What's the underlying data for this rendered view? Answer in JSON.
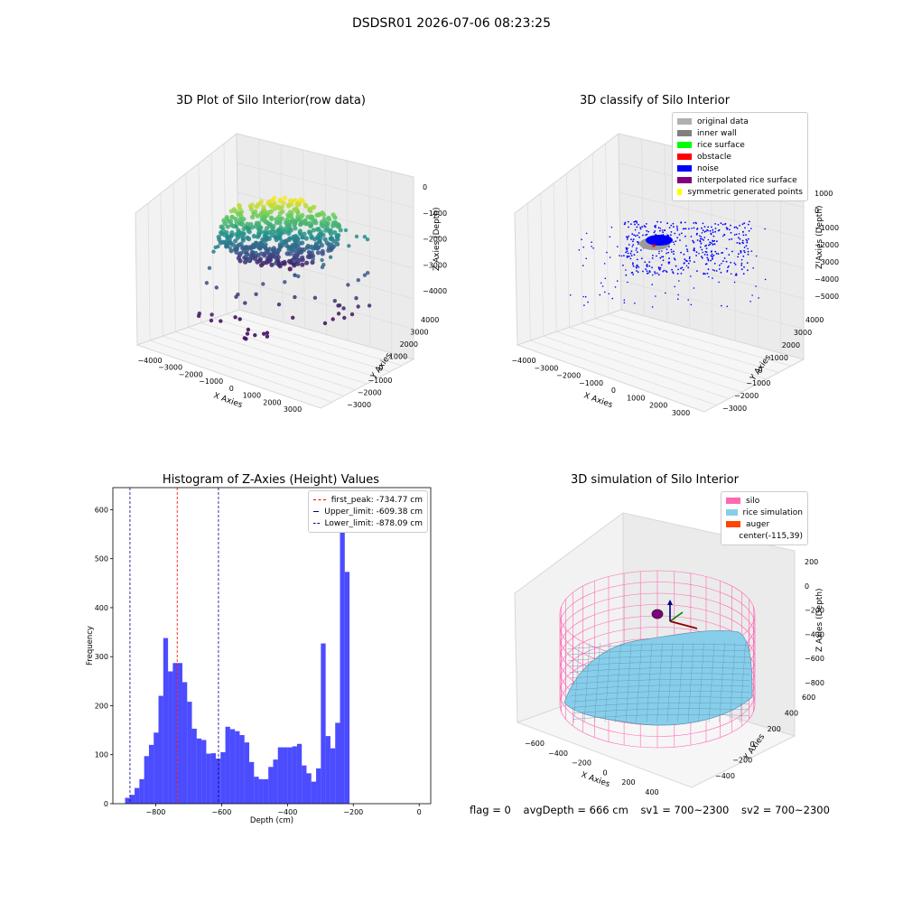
{
  "suptitle": "DSDSR01 2026-07-06 08:23:25",
  "footer": {
    "flag": "flag = 0",
    "avg": "avgDepth = 666 cm",
    "sv1": "sv1 = 700~2300",
    "sv2": "sv2 = 700~2300"
  },
  "chart_data": [
    {
      "type": "scatter",
      "title": "3D Plot of Silo Interior(row data)",
      "xlabel": "X Axies",
      "ylabel": "Y Axies",
      "zlabel": "Z Axies (Depth)",
      "x_ticks": [
        "−4000",
        "−3000",
        "−2000",
        "−1000",
        "0",
        "1000",
        "2000",
        "3000"
      ],
      "y_ticks": [
        "−3000",
        "−2000",
        "−1000",
        "0",
        "1000",
        "2000",
        "3000",
        "4000"
      ],
      "z_ticks": [
        "−4000",
        "−3000",
        "−2000",
        "−1000",
        "0"
      ],
      "colormap": "viridis"
    },
    {
      "type": "scatter",
      "title": "3D classify of Silo Interior",
      "xlabel": "X Axies",
      "ylabel": "Y Axies",
      "zlabel": "Z Axies (Depth)",
      "x_ticks": [
        "−4000",
        "−3000",
        "−2000",
        "−1000",
        "0",
        "1000",
        "2000",
        "3000"
      ],
      "y_ticks": [
        "−3000",
        "−2000",
        "−1000",
        "0",
        "1000",
        "2000",
        "3000",
        "4000"
      ],
      "z_ticks": [
        "−5000",
        "−4000",
        "−3000",
        "−2000",
        "−1000",
        "0",
        "1000"
      ],
      "legend": [
        {
          "label": "original data",
          "color": "#b0b0b0"
        },
        {
          "label": "inner wall",
          "color": "#808080"
        },
        {
          "label": "rice surface",
          "color": "#00ff00"
        },
        {
          "label": "obstacle",
          "color": "#ff0000"
        },
        {
          "label": "noise",
          "color": "#0000ff"
        },
        {
          "label": "interpolated rice surface",
          "color": "#800080"
        },
        {
          "label": "symmetric generated points",
          "color": "#ffff00"
        }
      ]
    },
    {
      "type": "bar",
      "title": "Histogram of Z-Axies (Height) Values",
      "xlabel": "Depth (cm)",
      "ylabel": "Frequency",
      "xlim": [
        -930,
        35
      ],
      "ylim": [
        0,
        645
      ],
      "x_ticks": [
        {
          "value": -800,
          "label": "−800"
        },
        {
          "value": -600,
          "label": "−600"
        },
        {
          "value": -400,
          "label": "−400"
        },
        {
          "value": -200,
          "label": "−200"
        },
        {
          "value": 0,
          "label": "0"
        }
      ],
      "y_ticks": [
        {
          "value": 0,
          "label": "0"
        },
        {
          "value": 100,
          "label": "100"
        },
        {
          "value": 200,
          "label": "200"
        },
        {
          "value": 300,
          "label": "300"
        },
        {
          "value": 400,
          "label": "400"
        },
        {
          "value": 500,
          "label": "500"
        },
        {
          "value": 600,
          "label": "600"
        }
      ],
      "bin_start": -893,
      "bin_width": 14.5,
      "values": [
        12,
        18,
        32,
        50,
        97,
        120,
        145,
        220,
        338,
        270,
        287,
        287,
        248,
        208,
        153,
        133,
        130,
        102,
        103,
        92,
        105,
        157,
        152,
        148,
        140,
        125,
        85,
        55,
        50,
        50,
        75,
        90,
        115,
        115,
        115,
        117,
        122,
        78,
        62,
        45,
        72,
        327,
        138,
        113,
        165,
        608,
        473
      ],
      "bar_color": "#0000ff",
      "vlines": [
        {
          "label": "first_peak: -734.77 cm",
          "x": -734.77,
          "color": "#ff0000"
        },
        {
          "label": "Upper_limit: -609.38 cm",
          "x": -609.38,
          "color": "#00008b"
        },
        {
          "label": "Lower_limit: -878.09 cm",
          "x": -878.09,
          "color": "#00008b"
        }
      ]
    },
    {
      "type": "surface",
      "title": "3D simulation of Silo Interior",
      "xlabel": "X Axies",
      "ylabel": "Y Axies",
      "zlabel": "Z Axies (Depth)",
      "x_ticks": [
        "−600",
        "−400",
        "−200",
        "0",
        "200",
        "400"
      ],
      "y_ticks": [
        "−400",
        "−200",
        "0",
        "200",
        "400",
        "600"
      ],
      "z_ticks": [
        "−800",
        "−600",
        "−400",
        "−200",
        "0",
        "200"
      ],
      "legend": [
        {
          "label": "silo",
          "color": "#ff69b4"
        },
        {
          "label": "rice simulation",
          "color": "#87ceeb"
        },
        {
          "label": "auger",
          "color": "#ff4500"
        },
        {
          "label": "center(-115,39)",
          "color": ""
        }
      ]
    }
  ]
}
